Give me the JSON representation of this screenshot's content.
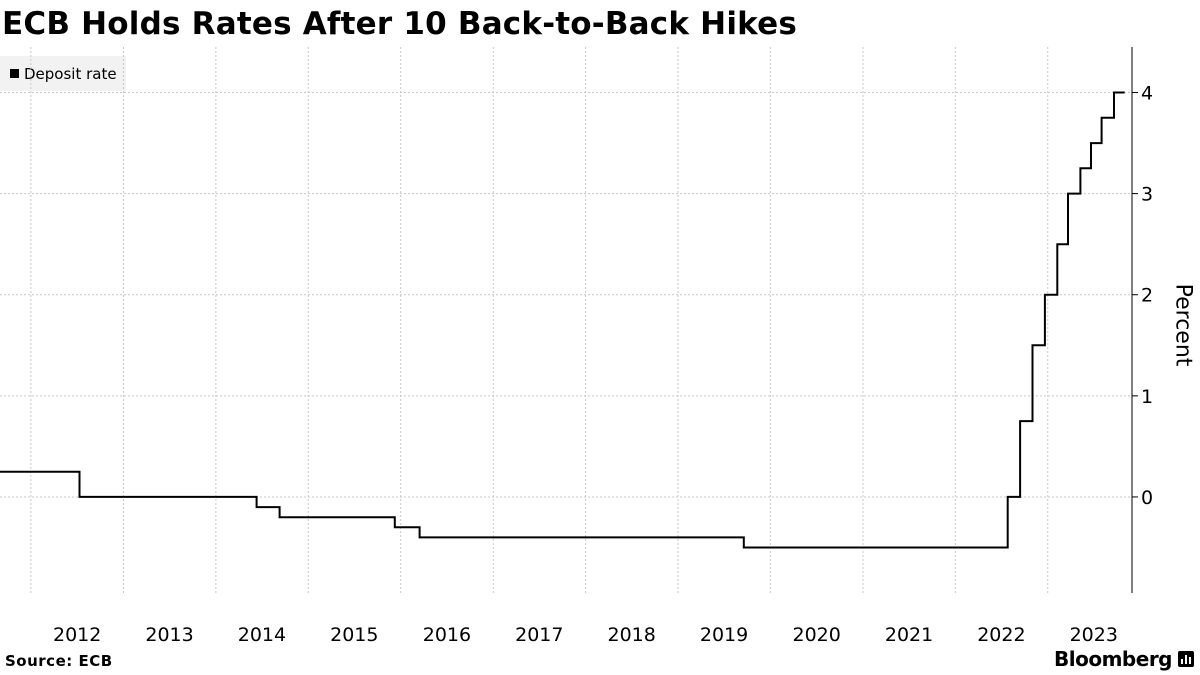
{
  "title": "ECB Holds Rates After 10 Back-to-Back Hikes",
  "source": "Source: ECB",
  "brand": "Bloomberg",
  "icons": [
    "bloomberg-terminal-icon"
  ],
  "colors": {
    "line": "#000000",
    "grid": "#c8c8c8",
    "legend_bg": "#f2f2f2"
  },
  "chart_data": {
    "type": "line",
    "step": true,
    "title": "ECB Holds Rates After 10 Back-to-Back Hikes",
    "xlabel": "",
    "ylabel": "Percent",
    "ylim": [
      -0.95,
      4.45
    ],
    "xlim": [
      "2011-09-01",
      "2023-11-30"
    ],
    "yticks": [
      0,
      1,
      2,
      3,
      4
    ],
    "xticks": [
      "2012",
      "2013",
      "2014",
      "2015",
      "2016",
      "2017",
      "2018",
      "2019",
      "2020",
      "2021",
      "2022",
      "2023"
    ],
    "grid": true,
    "legend": "top-left",
    "series": [
      {
        "name": "Deposit rate",
        "points": [
          [
            "2011-09-01",
            0.25
          ],
          [
            "2011-12-14",
            0.25
          ],
          [
            "2012-07-11",
            0.0
          ],
          [
            "2014-06-11",
            -0.1
          ],
          [
            "2014-09-10",
            -0.2
          ],
          [
            "2015-12-09",
            -0.3
          ],
          [
            "2016-03-16",
            -0.4
          ],
          [
            "2019-09-18",
            -0.5
          ],
          [
            "2022-07-27",
            0.0
          ],
          [
            "2022-09-14",
            0.75
          ],
          [
            "2022-11-02",
            1.5
          ],
          [
            "2022-12-21",
            2.0
          ],
          [
            "2023-02-08",
            2.5
          ],
          [
            "2023-03-22",
            3.0
          ],
          [
            "2023-05-10",
            3.25
          ],
          [
            "2023-06-21",
            3.5
          ],
          [
            "2023-08-02",
            3.75
          ],
          [
            "2023-09-20",
            4.0
          ],
          [
            "2023-11-01",
            4.0
          ]
        ]
      }
    ]
  }
}
